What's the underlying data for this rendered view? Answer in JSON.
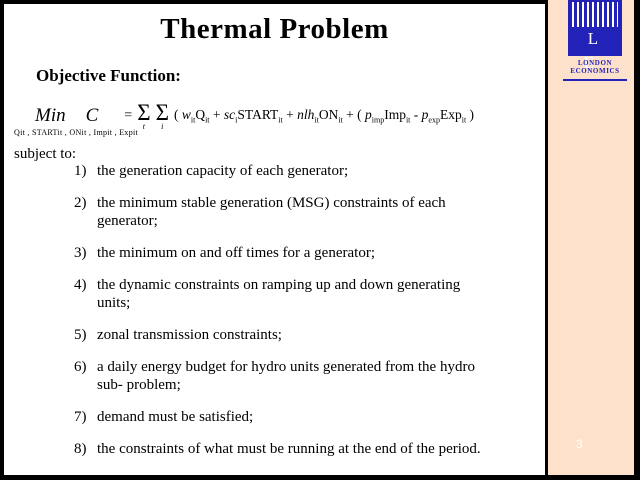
{
  "slide": {
    "title": "Thermal Problem",
    "objective_heading": "Objective Function:",
    "subject_to": "subject to:",
    "page_number": "3",
    "formula": {
      "min": "Min",
      "min_subscript": "Qit , STARTit , ONit , Impit , Expit",
      "variable": "C",
      "equals": "=",
      "sums": [
        {
          "symbol": "Σ",
          "sub": "t"
        },
        {
          "symbol": "Σ",
          "sub": "i"
        }
      ],
      "tokens": [
        {
          "t": "( "
        },
        {
          "t": "w",
          "s": "it",
          "i": true
        },
        {
          "t": "Q",
          "s": "it"
        },
        {
          "t": " + "
        },
        {
          "t": "sc",
          "s": "i",
          "i": true
        },
        {
          "t": "START",
          "s": "it"
        },
        {
          "t": " + "
        },
        {
          "t": "nlh",
          "s": "it",
          "i": true
        },
        {
          "t": "ON",
          "s": "it"
        },
        {
          "t": " + ( "
        },
        {
          "t": "p",
          "s": "imp",
          "i": true
        },
        {
          "t": "Imp",
          "s": "it"
        },
        {
          "t": " - "
        },
        {
          "t": "p",
          "s": "exp",
          "i": true
        },
        {
          "t": "Exp",
          "s": "it"
        },
        {
          "t": " )"
        }
      ]
    },
    "constraints": [
      {
        "num": "1)",
        "text": "the generation capacity of each generator;"
      },
      {
        "num": "2)",
        "text": "the minimum stable generation (MSG) constraints of each generator;"
      },
      {
        "num": "3)",
        "text": "the minimum on and off times for a generator;"
      },
      {
        "num": "4)",
        "text": "the dynamic constraints on ramping up and down generating units;"
      },
      {
        "num": "5)",
        "text": "zonal transmission constraints;"
      },
      {
        "num": "6)",
        "text": "a daily energy budget for hydro units generated from the hydro sub- problem;"
      },
      {
        "num": "7)",
        "text": "demand must be satisfied;"
      },
      {
        "num": "8)",
        "text": "the constraints of what must be running at the end of the period."
      }
    ],
    "logo": {
      "letters": "L E",
      "org_line1": "LONDON",
      "org_line2": "ECONOMICS"
    },
    "colors": {
      "sidebar_peach": "#fde1cb",
      "logo_blue": "#2222b8",
      "border_black": "#000000",
      "page_background": "#ffffff"
    }
  }
}
